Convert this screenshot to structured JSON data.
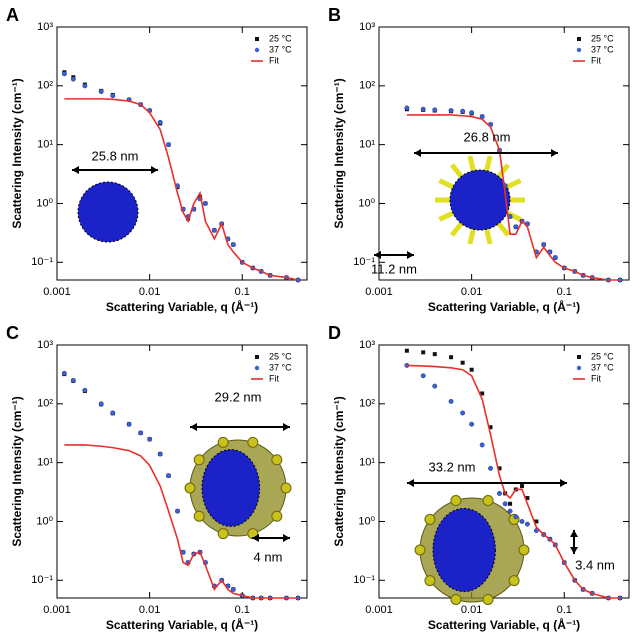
{
  "chart_data": [
    {
      "type": "scatter",
      "panel": "A",
      "y_label": "Scattering Intensity (cm⁻¹)",
      "x_label": "Scattering Variable, q (Å⁻¹)",
      "log_x": true,
      "log_y": true,
      "legend": "upper right",
      "annotations": [
        "25.8 nm"
      ],
      "xlim": [
        0.001,
        0.5
      ],
      "ylim": [
        0.05,
        1000
      ],
      "xticks": [
        0.001,
        0.01,
        0.1
      ],
      "yticks": [
        {
          "value": 0.1,
          "label": "10⁻¹"
        },
        {
          "value": 1,
          "label": "10⁰"
        },
        {
          "value": 10,
          "label": "10¹"
        },
        {
          "value": 100,
          "label": "10²"
        },
        {
          "value": 1000,
          "label": "10³"
        }
      ],
      "x": [
        0.0012,
        0.0015,
        0.002,
        0.003,
        0.004,
        0.006,
        0.008,
        0.01,
        0.013,
        0.016,
        0.02,
        0.023,
        0.026,
        0.03,
        0.035,
        0.04,
        0.05,
        0.06,
        0.07,
        0.08,
        0.1,
        0.13,
        0.16,
        0.2,
        0.3,
        0.4
      ],
      "series": [
        {
          "name": "25 °C",
          "color": "#111111",
          "marker": "square",
          "values": [
            170,
            140,
            105,
            82,
            70,
            58,
            48,
            38,
            23,
            10,
            1.9,
            0.8,
            0.55,
            0.8,
            1.3,
            1.0,
            0.35,
            0.45,
            0.25,
            0.2,
            0.1,
            0.08,
            0.07,
            0.06,
            0.055,
            0.05
          ]
        },
        {
          "name": "37 °C",
          "color": "#3a62d8",
          "marker": "circle",
          "values": [
            160,
            130,
            100,
            80,
            68,
            58,
            48,
            38,
            24,
            10,
            2,
            0.8,
            0.6,
            0.8,
            1.2,
            1.0,
            0.35,
            0.45,
            0.25,
            0.2,
            0.1,
            0.08,
            0.07,
            0.06,
            0.055,
            0.05
          ]
        },
        {
          "name": "Fit",
          "color": "#e8302a",
          "marker": "line",
          "values": [
            60,
            60,
            60,
            60,
            59,
            55,
            48,
            35,
            18,
            6,
            1.5,
            0.7,
            0.5,
            1.0,
            1.5,
            0.5,
            0.25,
            0.45,
            0.2,
            0.15,
            0.1,
            0.08,
            0.07,
            0.06,
            0.055,
            0.05
          ]
        }
      ]
    },
    {
      "type": "scatter",
      "panel": "B",
      "y_label": "Scattering Intensity (cm⁻¹)",
      "x_label": "Scattering Variable, q (Å⁻¹)",
      "log_x": true,
      "log_y": true,
      "legend": "upper right",
      "annotations": [
        "26.8 nm",
        "11.2 nm"
      ],
      "xlim": [
        0.001,
        0.5
      ],
      "ylim": [
        0.05,
        1000
      ],
      "xticks": [
        0.001,
        0.01,
        0.1
      ],
      "yticks": [
        {
          "value": 0.1,
          "label": "10⁻¹"
        },
        {
          "value": 1,
          "label": "10⁰"
        },
        {
          "value": 10,
          "label": "10¹"
        },
        {
          "value": 100,
          "label": "10²"
        },
        {
          "value": 1000,
          "label": "10³"
        }
      ],
      "x": [
        0.0012,
        0.0015,
        0.002,
        0.003,
        0.004,
        0.006,
        0.008,
        0.01,
        0.013,
        0.016,
        0.02,
        0.023,
        0.026,
        0.03,
        0.035,
        0.04,
        0.05,
        0.06,
        0.07,
        0.08,
        0.1,
        0.13,
        0.16,
        0.2,
        0.3,
        0.4
      ],
      "series": [
        {
          "name": "25 °C",
          "color": "#111111",
          "marker": "square",
          "values": [
            null,
            null,
            40,
            39,
            38,
            37,
            36,
            34,
            30,
            22,
            8,
            2,
            0.6,
            0.4,
            0.5,
            0.45,
            0.15,
            0.2,
            0.15,
            0.12,
            0.08,
            0.07,
            0.06,
            0.055,
            0.05,
            0.05
          ]
        },
        {
          "name": "37 °C",
          "color": "#3a62d8",
          "marker": "circle",
          "values": [
            null,
            null,
            42,
            40,
            39,
            38,
            37,
            35,
            30,
            22,
            8,
            2,
            0.6,
            0.4,
            0.5,
            0.45,
            0.15,
            0.2,
            0.15,
            0.12,
            0.08,
            0.07,
            0.06,
            0.055,
            0.05,
            0.05
          ]
        },
        {
          "name": "Fit",
          "color": "#e8302a",
          "marker": "line",
          "values": [
            null,
            null,
            32,
            32,
            32,
            32,
            31,
            30,
            27,
            20,
            8,
            1.5,
            0.3,
            0.3,
            0.5,
            0.4,
            0.12,
            0.18,
            0.13,
            0.1,
            0.08,
            0.07,
            0.06,
            0.055,
            0.05,
            0.05
          ]
        }
      ]
    },
    {
      "type": "scatter",
      "panel": "C",
      "y_label": "Scattering Intensity (cm⁻¹)",
      "x_label": "Scattering Variable, q (Å⁻¹)",
      "log_x": true,
      "log_y": true,
      "legend": "upper right",
      "annotations": [
        "29.2 nm",
        "4 nm"
      ],
      "xlim": [
        0.001,
        0.5
      ],
      "ylim": [
        0.05,
        1000
      ],
      "xticks": [
        0.001,
        0.01,
        0.1
      ],
      "yticks": [
        {
          "value": 0.1,
          "label": "10⁻¹"
        },
        {
          "value": 1,
          "label": "10⁰"
        },
        {
          "value": 10,
          "label": "10¹"
        },
        {
          "value": 100,
          "label": "10²"
        },
        {
          "value": 1000,
          "label": "10³"
        }
      ],
      "x": [
        0.0012,
        0.0015,
        0.002,
        0.003,
        0.004,
        0.006,
        0.008,
        0.01,
        0.013,
        0.016,
        0.02,
        0.023,
        0.026,
        0.03,
        0.035,
        0.04,
        0.05,
        0.06,
        0.07,
        0.08,
        0.1,
        0.13,
        0.16,
        0.2,
        0.3,
        0.4
      ],
      "series": [
        {
          "name": "25 °C",
          "color": "#111111",
          "marker": "square",
          "values": [
            320,
            245,
            165,
            98,
            69,
            45,
            32,
            25,
            14,
            6,
            1.5,
            0.3,
            0.2,
            0.28,
            0.3,
            0.2,
            0.08,
            0.1,
            0.08,
            0.07,
            0.055,
            0.05,
            0.05,
            0.05,
            0.05,
            0.05
          ]
        },
        {
          "name": "37 °C",
          "color": "#3a62d8",
          "marker": "circle",
          "values": [
            330,
            250,
            170,
            100,
            70,
            45,
            32,
            25,
            14,
            6,
            1.5,
            0.3,
            0.2,
            0.28,
            0.3,
            0.2,
            0.08,
            0.1,
            0.08,
            0.07,
            0.055,
            0.05,
            0.05,
            0.05,
            0.05,
            0.05
          ]
        },
        {
          "name": "Fit",
          "color": "#e8302a",
          "marker": "line",
          "values": [
            20,
            20,
            20,
            19,
            18,
            16,
            13,
            9,
            4,
            1.5,
            0.5,
            0.2,
            0.18,
            0.28,
            0.3,
            0.18,
            0.07,
            0.1,
            0.07,
            0.06,
            0.055,
            0.05,
            0.05,
            0.05,
            0.05,
            0.05
          ]
        }
      ]
    },
    {
      "type": "scatter",
      "panel": "D",
      "y_label": "Scattering Intensity (cm⁻¹)",
      "x_label": "Scattering Variable, q (Å⁻¹)",
      "log_x": true,
      "log_y": true,
      "legend": "upper right",
      "annotations": [
        "33.2 nm",
        "3.4 nm"
      ],
      "xlim": [
        0.001,
        0.5
      ],
      "ylim": [
        0.05,
        1000
      ],
      "xticks": [
        0.001,
        0.01,
        0.1
      ],
      "yticks": [
        {
          "value": 0.1,
          "label": "10⁻¹"
        },
        {
          "value": 1,
          "label": "10⁰"
        },
        {
          "value": 10,
          "label": "10¹"
        },
        {
          "value": 100,
          "label": "10²"
        },
        {
          "value": 1000,
          "label": "10³"
        }
      ],
      "x": [
        0.0012,
        0.0015,
        0.002,
        0.003,
        0.004,
        0.006,
        0.008,
        0.01,
        0.013,
        0.016,
        0.02,
        0.023,
        0.026,
        0.03,
        0.035,
        0.04,
        0.05,
        0.06,
        0.07,
        0.08,
        0.1,
        0.13,
        0.16,
        0.2,
        0.3,
        0.4
      ],
      "series": [
        {
          "name": "25 °C",
          "color": "#111111",
          "marker": "square",
          "values": [
            null,
            null,
            800,
            750,
            700,
            620,
            500,
            380,
            150,
            40,
            8,
            3,
            2,
            3.5,
            4,
            2.5,
            1,
            0.6,
            0.5,
            0.4,
            0.2,
            0.1,
            0.07,
            0.06,
            0.05,
            0.05
          ]
        },
        {
          "name": "37 °C",
          "color": "#3a62d8",
          "marker": "circle",
          "values": [
            null,
            null,
            450,
            300,
            200,
            110,
            70,
            45,
            20,
            8,
            3,
            2,
            1.5,
            1.2,
            1.0,
            0.9,
            0.7,
            0.6,
            0.5,
            0.4,
            0.2,
            0.1,
            0.07,
            0.06,
            0.05,
            0.05
          ]
        },
        {
          "name": "Fit",
          "color": "#e8302a",
          "marker": "line",
          "values": [
            null,
            null,
            450,
            440,
            430,
            410,
            380,
            300,
            120,
            30,
            6,
            3,
            2.5,
            3.5,
            3.5,
            2.0,
            0.8,
            0.6,
            0.5,
            0.4,
            0.2,
            0.1,
            0.07,
            0.06,
            0.05,
            0.05
          ]
        }
      ]
    }
  ]
}
